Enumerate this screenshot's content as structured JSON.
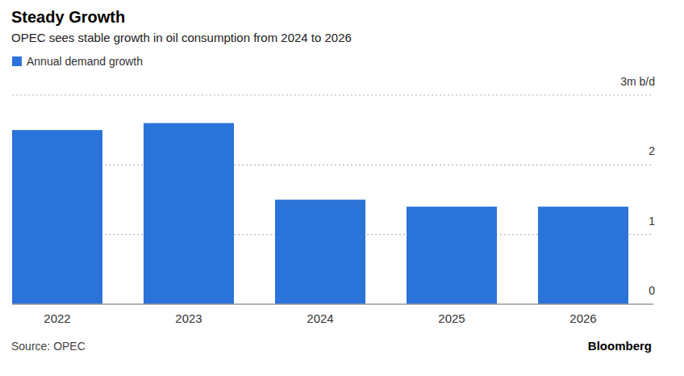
{
  "chart_data": {
    "type": "bar",
    "title": "Steady Growth",
    "subtitle": "OPEC sees stable growth in oil consumption from 2024 to 2026",
    "categories": [
      "2022",
      "2023",
      "2024",
      "2025",
      "2026"
    ],
    "series": [
      {
        "name": "Annual demand growth",
        "color": "#2a73d9",
        "values": [
          2.5,
          2.6,
          1.5,
          1.4,
          1.4
        ]
      }
    ],
    "ylim": [
      0,
      3
    ],
    "yticks": [
      0,
      1,
      2,
      {
        "value": 3,
        "label": "3m b/d"
      }
    ],
    "grid": true,
    "legend": "top-left",
    "source": "Source: OPEC",
    "credit": "Bloomberg"
  }
}
